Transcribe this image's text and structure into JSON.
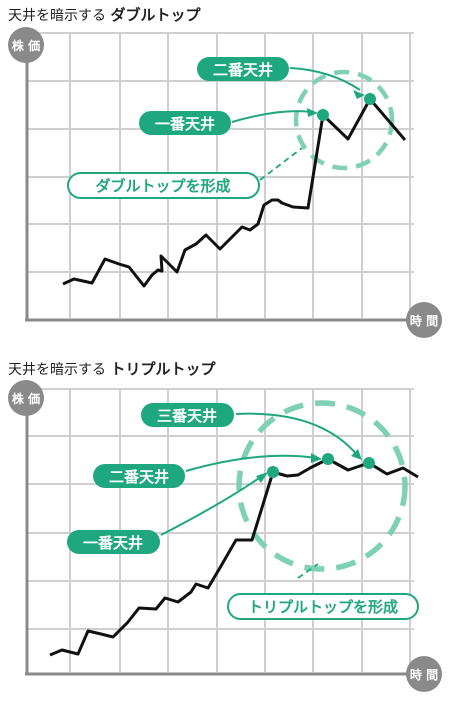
{
  "top": {
    "title_prefix": "天井を暗示する",
    "title_emphasis": "ダブルトップ",
    "y_axis_label": "株 価",
    "x_axis_label": "時 間",
    "labels": {
      "first": "一番天井",
      "second": "二番天井",
      "formation": "ダブルトップを形成"
    }
  },
  "bottom": {
    "title_prefix": "天井を暗示する",
    "title_emphasis": "トリプルトップ",
    "y_axis_label": "株 価",
    "x_axis_label": "時 間",
    "labels": {
      "first": "一番天井",
      "second": "二番天井",
      "third": "三番天井",
      "formation": "トリプルトップを形成"
    }
  },
  "colors": {
    "accent": "#1fa77f",
    "accent_light": "#7fd1b5",
    "grid": "#cfcfcf",
    "axis": "#8a8a8a",
    "line": "#111111"
  }
}
